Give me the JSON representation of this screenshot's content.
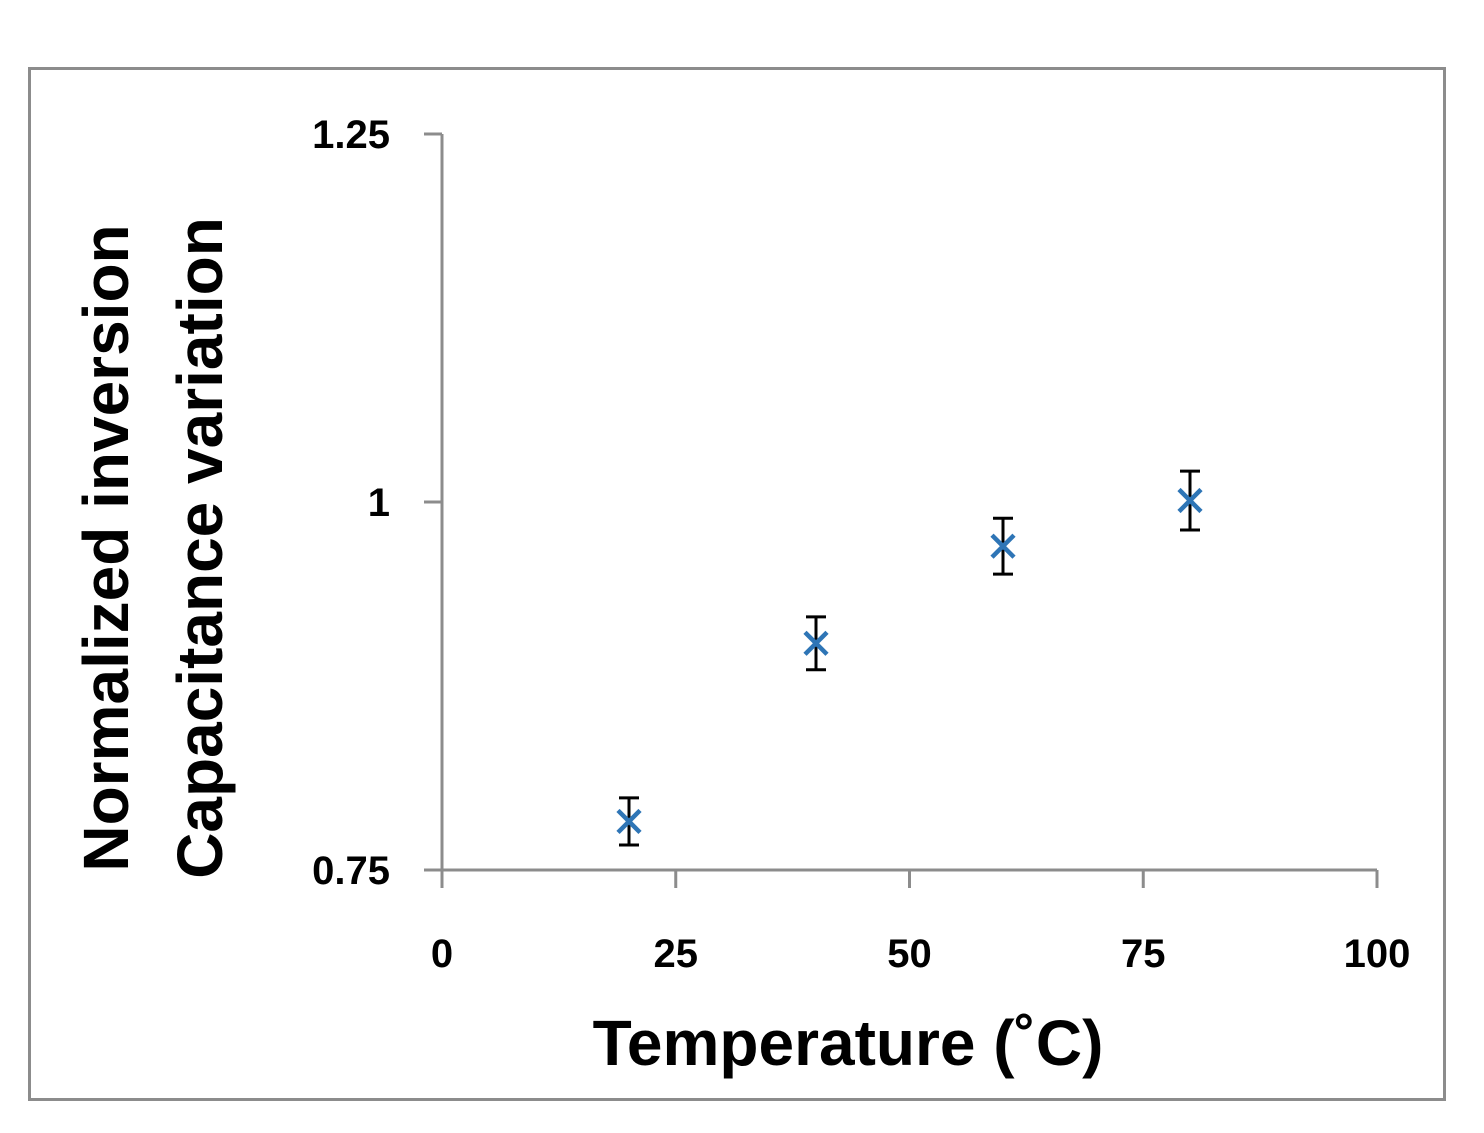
{
  "chart_data": {
    "type": "scatter",
    "title": "",
    "xlabel": "Temperature (˚C)",
    "ylabel_lines": [
      "Normalized inversion",
      "Capacitance variation"
    ],
    "xlim": [
      0,
      100
    ],
    "ylim": [
      0.75,
      1.25
    ],
    "x_ticks": [
      0,
      25,
      50,
      75,
      100
    ],
    "x_tick_labels": [
      "0",
      "25",
      "50",
      "75",
      "100"
    ],
    "y_ticks": [
      0.75,
      1.0,
      1.25
    ],
    "y_tick_labels": [
      "0.75",
      "1",
      "1.25"
    ],
    "grid": false,
    "legend": "none",
    "series": [
      {
        "marker": "x",
        "color": "#2e75b6",
        "errorbar_color": "#000000",
        "points": [
          {
            "x": 20,
            "y": 0.783,
            "err": 0.016
          },
          {
            "x": 40,
            "y": 0.904,
            "err": 0.018
          },
          {
            "x": 60,
            "y": 0.97,
            "err": 0.019
          },
          {
            "x": 80,
            "y": 1.001,
            "err": 0.02
          }
        ]
      }
    ],
    "frame_color": "#8c8c8c",
    "axis_color": "#8c8c8c"
  }
}
